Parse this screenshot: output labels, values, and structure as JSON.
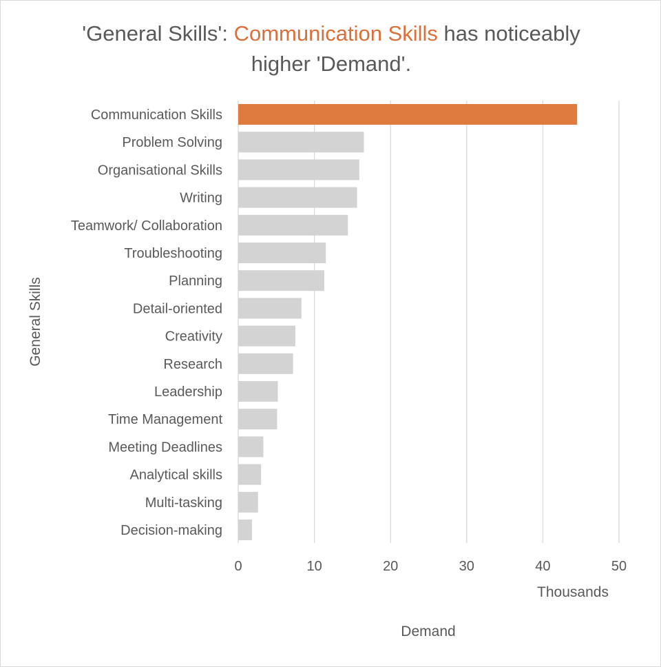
{
  "title": {
    "prefix": "'General Skills': ",
    "highlight": "Communication Skills",
    "suffix": " has noticeably higher 'Demand'."
  },
  "colors": {
    "highlight": "#e07b3f",
    "highlight_text": "#d9703b",
    "bar": "#d3d3d3",
    "grid": "#d9d9d9",
    "text": "#595959"
  },
  "chart_data": {
    "type": "bar",
    "orientation": "horizontal",
    "categories": [
      "Communication Skills",
      "Problem Solving",
      "Organisational Skills",
      "Writing",
      "Teamwork/ Collaboration",
      "Troubleshooting",
      "Planning",
      "Detail-oriented",
      "Creativity",
      "Research",
      "Leadership",
      "Time Management",
      "Meeting Deadlines",
      "Analytical skills",
      "Multi-tasking",
      "Decision-making"
    ],
    "values": [
      44.5,
      16.5,
      15.9,
      15.6,
      14.4,
      11.5,
      11.3,
      8.3,
      7.5,
      7.2,
      5.2,
      5.1,
      3.3,
      3.0,
      2.6,
      1.8
    ],
    "highlight_index": 0,
    "xlabel": "Demand",
    "xunit_label": "Thousands",
    "ylabel": "General Skills",
    "xlim": [
      0,
      50
    ],
    "xticks": [
      0,
      10,
      20,
      30,
      40,
      50
    ],
    "grid": true,
    "legend": "none"
  }
}
